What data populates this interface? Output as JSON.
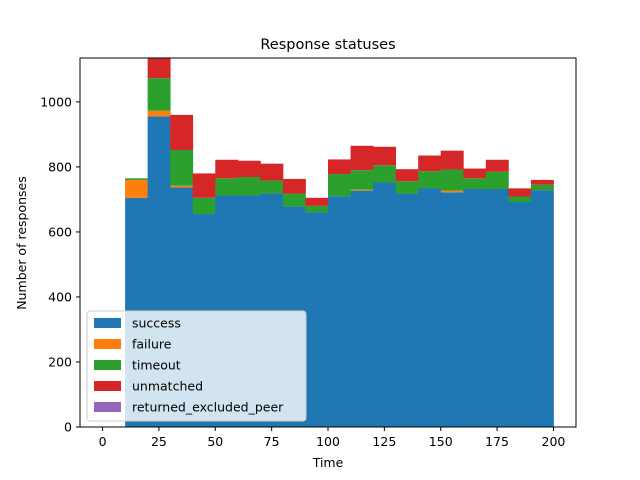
{
  "chart_data": {
    "type": "bar",
    "stacked": true,
    "histogram": true,
    "title": "Response statuses",
    "xlabel": "Time",
    "ylabel": "Number of responses",
    "xlim": [
      -10,
      210
    ],
    "ylim": [
      0,
      1135
    ],
    "bin_width": 10,
    "x_ticks": [
      0,
      25,
      50,
      75,
      100,
      125,
      150,
      175,
      200
    ],
    "y_ticks": [
      0,
      200,
      400,
      600,
      800,
      1000
    ],
    "legend_position": "lower-left",
    "bins": [
      10,
      20,
      30,
      40,
      50,
      60,
      70,
      80,
      90,
      100,
      110,
      120,
      130,
      140,
      150,
      160,
      170,
      180,
      190
    ],
    "series": [
      {
        "name": "success",
        "color": "#1f77b4",
        "values": [
          705,
          955,
          737,
          655,
          712,
          712,
          718,
          678,
          660,
          710,
          727,
          752,
          718,
          735,
          722,
          732,
          732,
          692,
          728
        ]
      },
      {
        "name": "failure",
        "color": "#ff7f0e",
        "values": [
          55,
          18,
          5,
          0,
          0,
          0,
          0,
          0,
          0,
          0,
          3,
          0,
          0,
          0,
          5,
          0,
          0,
          0,
          0
        ]
      },
      {
        "name": "timeout",
        "color": "#2ca02c",
        "values": [
          5,
          100,
          110,
          50,
          53,
          57,
          40,
          40,
          20,
          68,
          60,
          53,
          38,
          52,
          65,
          33,
          53,
          17,
          17
        ]
      },
      {
        "name": "unmatched",
        "color": "#d62728",
        "values": [
          0,
          67,
          108,
          75,
          57,
          50,
          52,
          45,
          25,
          45,
          75,
          57,
          37,
          48,
          58,
          30,
          37,
          25,
          15
        ]
      },
      {
        "name": "returned_excluded_peer",
        "color": "#9467bd",
        "values": [
          0,
          0,
          0,
          0,
          0,
          0,
          0,
          0,
          0,
          0,
          0,
          0,
          0,
          0,
          0,
          0,
          0,
          0,
          0
        ]
      }
    ]
  }
}
